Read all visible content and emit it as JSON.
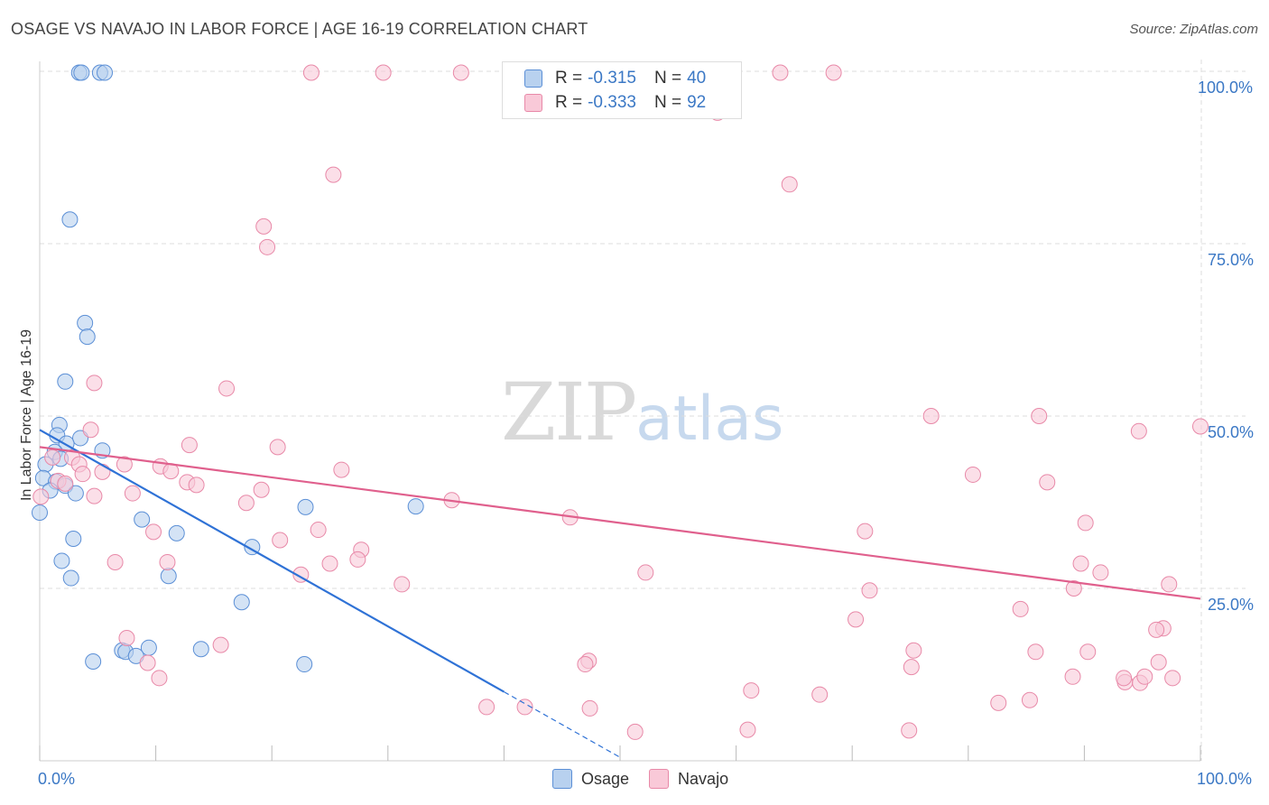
{
  "header": {
    "title": "OSAGE VS NAVAJO IN LABOR FORCE | AGE 16-19 CORRELATION CHART",
    "source": "Source: ZipAtlas.com"
  },
  "watermark": {
    "zip": "ZIP",
    "atlas": "atlas"
  },
  "legend": {
    "series": [
      {
        "name": "Osage",
        "r_label": "R =",
        "r_value": "-0.315",
        "n_label": "N =",
        "n_value": "40",
        "fill": "#b8d1ef",
        "stroke": "#5b8fd6"
      },
      {
        "name": "Navajo",
        "r_label": "R =",
        "r_value": "-0.333",
        "n_label": "N =",
        "n_value": "92",
        "fill": "#f9c9d8",
        "stroke": "#e889a8"
      }
    ]
  },
  "colors": {
    "osage_line": "#2f72d6",
    "navajo_line": "#e0608d",
    "grid": "#dddddd",
    "axis_text": "#3b78c5"
  },
  "chart_data": {
    "type": "scatter",
    "title": "OSAGE VS NAVAJO IN LABOR FORCE | AGE 16-19 CORRELATION CHART",
    "xlabel": "",
    "ylabel": "In Labor Force | Age 16-19",
    "xlim": [
      0,
      100
    ],
    "ylim": [
      0,
      100
    ],
    "x_tick_labels": [
      "0.0%",
      "100.0%"
    ],
    "y_tick_labels": [
      "100.0%",
      "75.0%",
      "50.0%",
      "25.0%"
    ],
    "y_ticks": [
      100,
      75,
      50,
      25
    ],
    "grid": true,
    "series": [
      {
        "name": "Osage",
        "trend": {
          "x0": 0,
          "y0": 48,
          "x1": 40,
          "y1": 10,
          "dashed_to_x": 50,
          "dashed_to_y": 0.5
        },
        "points": [
          [
            3.4,
            99.8
          ],
          [
            3.6,
            99.8
          ],
          [
            5.2,
            99.8
          ],
          [
            5.6,
            99.8
          ],
          [
            2.6,
            78.5
          ],
          [
            3.9,
            63.5
          ],
          [
            4.1,
            61.5
          ],
          [
            2.2,
            55
          ],
          [
            1.7,
            48.7
          ],
          [
            1.5,
            47.2
          ],
          [
            3.5,
            46.8
          ],
          [
            2.3,
            46
          ],
          [
            5.4,
            45
          ],
          [
            1.3,
            44.8
          ],
          [
            1.8,
            43.8
          ],
          [
            0.5,
            43
          ],
          [
            0.3,
            41
          ],
          [
            1.4,
            40.5
          ],
          [
            2.2,
            39.9
          ],
          [
            0.9,
            39.2
          ],
          [
            3.1,
            38.8
          ],
          [
            0,
            36
          ],
          [
            8.8,
            35
          ],
          [
            22.9,
            36.8
          ],
          [
            32.4,
            36.9
          ],
          [
            11.8,
            33
          ],
          [
            2.9,
            32.2
          ],
          [
            18.3,
            31
          ],
          [
            1.9,
            29
          ],
          [
            11.1,
            26.8
          ],
          [
            2.7,
            26.5
          ],
          [
            17.4,
            23
          ],
          [
            7.1,
            16
          ],
          [
            7.4,
            15.8
          ],
          [
            9.4,
            16.4
          ],
          [
            13.9,
            16.2
          ],
          [
            8.3,
            15.2
          ],
          [
            4.6,
            14.4
          ],
          [
            22.8,
            14
          ]
        ]
      },
      {
        "name": "Navajo",
        "trend": {
          "x0": 0,
          "y0": 45.5,
          "x1": 100,
          "y1": 23.5
        },
        "points": [
          [
            23.4,
            99.8
          ],
          [
            29.6,
            99.8
          ],
          [
            36.3,
            99.8
          ],
          [
            63.8,
            99.8
          ],
          [
            68.4,
            99.8
          ],
          [
            58.4,
            94
          ],
          [
            25.3,
            85
          ],
          [
            64.6,
            83.6
          ],
          [
            19.3,
            77.5
          ],
          [
            19.6,
            74.5
          ],
          [
            4.7,
            54.8
          ],
          [
            16.1,
            54
          ],
          [
            4.4,
            48
          ],
          [
            1.1,
            44
          ],
          [
            2.8,
            44
          ],
          [
            12.9,
            45.8
          ],
          [
            20.5,
            45.5
          ],
          [
            3.4,
            43
          ],
          [
            7.3,
            43
          ],
          [
            10.4,
            42.7
          ],
          [
            11.3,
            42
          ],
          [
            26,
            42.2
          ],
          [
            5.4,
            41.9
          ],
          [
            3.7,
            41.6
          ],
          [
            1.6,
            40.6
          ],
          [
            2.2,
            40.2
          ],
          [
            12.7,
            40.4
          ],
          [
            13.5,
            40
          ],
          [
            19.1,
            39.3
          ],
          [
            8,
            38.8
          ],
          [
            0.1,
            38.3
          ],
          [
            4.7,
            38.4
          ],
          [
            17.8,
            37.4
          ],
          [
            35.5,
            37.8
          ],
          [
            76.8,
            50
          ],
          [
            86.1,
            50
          ],
          [
            94.7,
            47.8
          ],
          [
            100,
            48.5
          ],
          [
            80.4,
            41.5
          ],
          [
            86.8,
            40.4
          ],
          [
            45.7,
            35.3
          ],
          [
            90.1,
            34.5
          ],
          [
            9.8,
            33.2
          ],
          [
            24,
            33.5
          ],
          [
            71.1,
            33.3
          ],
          [
            20.7,
            32
          ],
          [
            27.7,
            30.6
          ],
          [
            6.5,
            28.8
          ],
          [
            11,
            28.8
          ],
          [
            27.4,
            29.2
          ],
          [
            25,
            28.6
          ],
          [
            89.7,
            28.6
          ],
          [
            91.4,
            27.3
          ],
          [
            22.5,
            27
          ],
          [
            52.2,
            27.3
          ],
          [
            31.2,
            25.6
          ],
          [
            97.3,
            25.6
          ],
          [
            89.1,
            25
          ],
          [
            71.5,
            24.7
          ],
          [
            84.5,
            22
          ],
          [
            70.3,
            20.5
          ],
          [
            96.8,
            19.2
          ],
          [
            96.2,
            19
          ],
          [
            7.5,
            17.8
          ],
          [
            15.6,
            16.8
          ],
          [
            85.8,
            15.8
          ],
          [
            75.3,
            16
          ],
          [
            90.3,
            15.8
          ],
          [
            47.3,
            14.5
          ],
          [
            47,
            14
          ],
          [
            9.3,
            14.2
          ],
          [
            10.3,
            12
          ],
          [
            96.4,
            14.3
          ],
          [
            75.1,
            13.6
          ],
          [
            89,
            12.2
          ],
          [
            93.5,
            11.4
          ],
          [
            94.8,
            11.3
          ],
          [
            95.2,
            12.2
          ],
          [
            97.6,
            12
          ],
          [
            93.4,
            12
          ],
          [
            61.3,
            10.2
          ],
          [
            67.2,
            9.6
          ],
          [
            82.6,
            8.4
          ],
          [
            85.3,
            8.8
          ],
          [
            38.5,
            7.8
          ],
          [
            47.4,
            7.6
          ],
          [
            41.8,
            7.8
          ],
          [
            51.3,
            4.2
          ],
          [
            61,
            4.5
          ],
          [
            74.9,
            4.4
          ]
        ]
      }
    ]
  }
}
